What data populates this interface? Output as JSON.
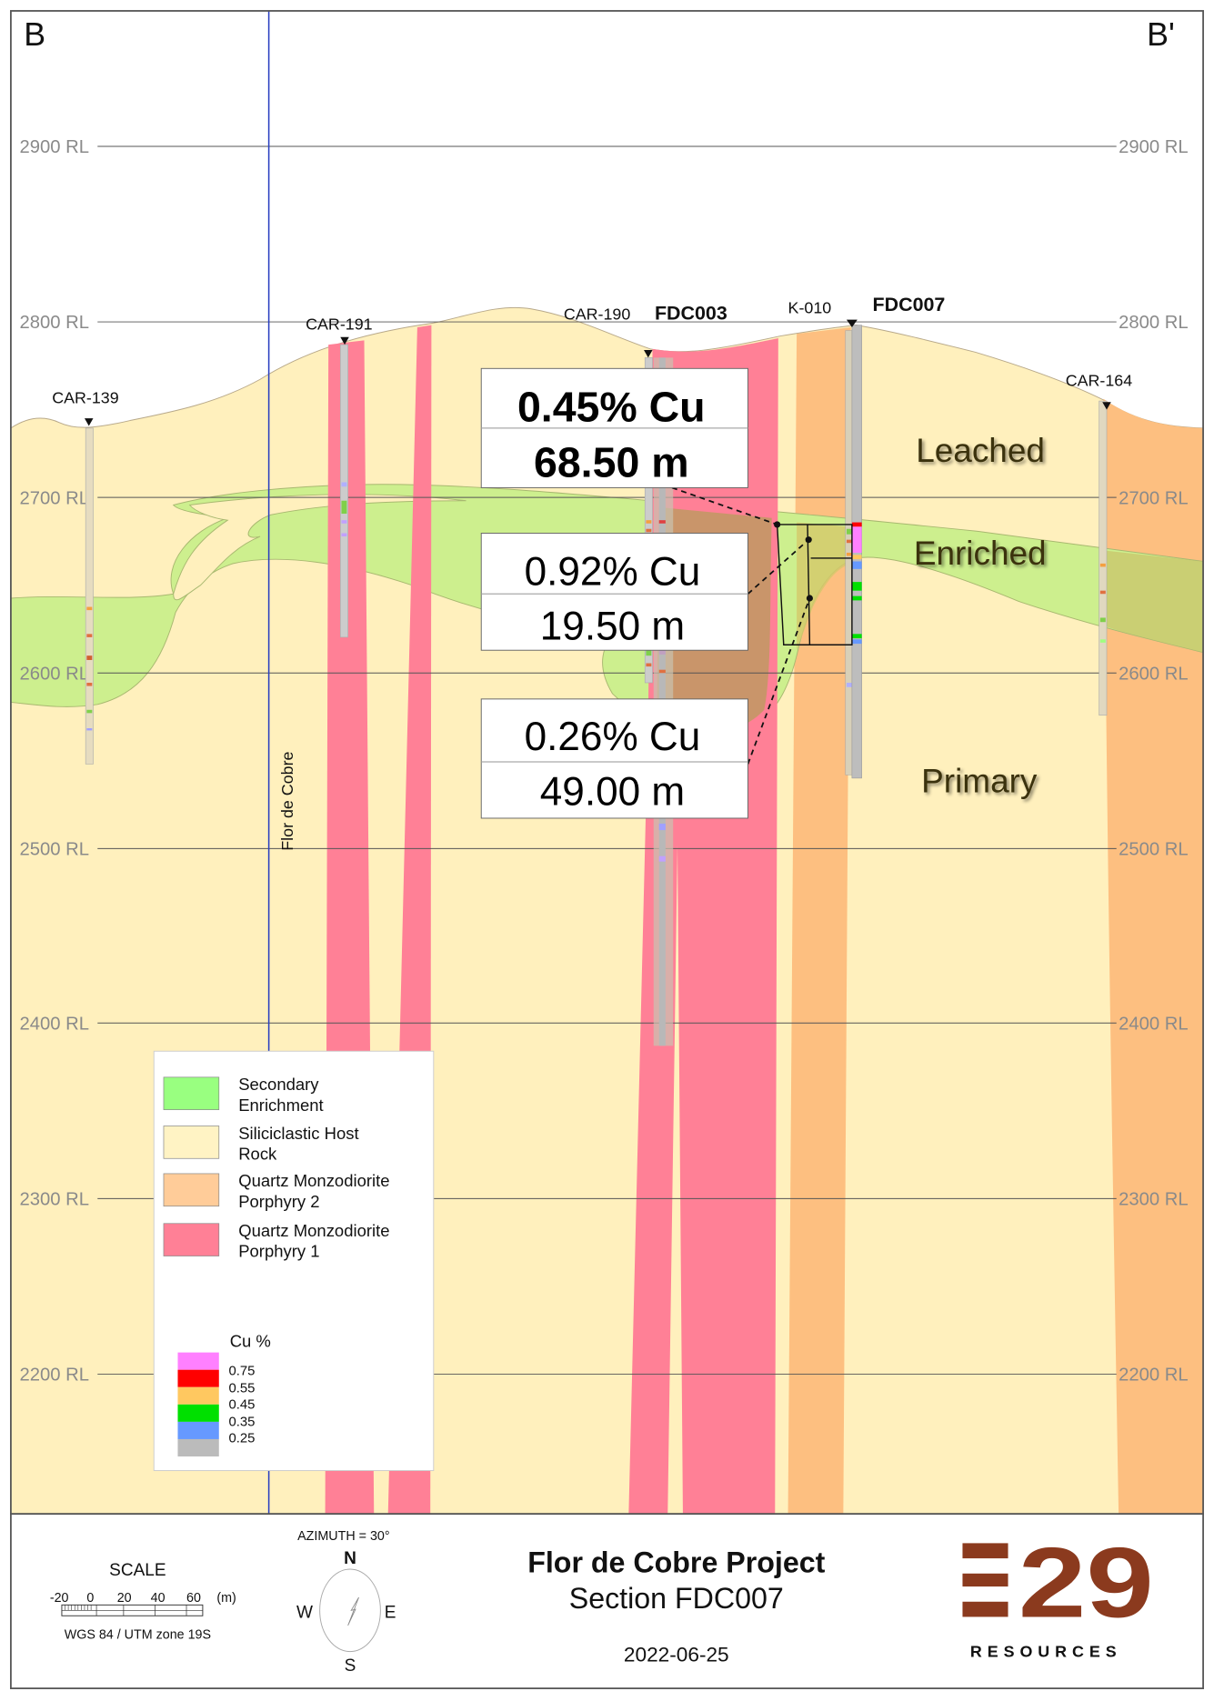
{
  "section": {
    "left_label": "B",
    "right_label": "B'"
  },
  "rl_levels": [
    "2900 RL",
    "2800 RL",
    "2700 RL",
    "2600 RL",
    "2500 RL",
    "2400 RL",
    "2300 RL",
    "2200 RL"
  ],
  "drillholes": {
    "car139": "CAR-139",
    "car191": "CAR-191",
    "car190": "CAR-190",
    "fdc003": "FDC003",
    "k010": "K-010",
    "fdc007": "FDC007",
    "car164": "CAR-164"
  },
  "fault_label": "Flor de Cobre",
  "zones": {
    "leached": "Leached",
    "enriched": "Enriched",
    "primary": "Primary"
  },
  "intercepts": [
    {
      "grade": "0.45% Cu",
      "length": "68.50 m"
    },
    {
      "grade": "0.92% Cu",
      "length": "19.50 m"
    },
    {
      "grade": "0.26% Cu",
      "length": "49.00 m"
    }
  ],
  "legend": {
    "units": [
      {
        "line1": "Secondary",
        "line2": "Enrichment",
        "color": "#99ff80"
      },
      {
        "line1": "Siliciclastic Host",
        "line2": "Rock",
        "color": "#fff3c4"
      },
      {
        "line1": "Quartz Monzodiorite",
        "line2": "Porphyry 2",
        "color": "#ffcc99"
      },
      {
        "line1": "Quartz Monzodiorite",
        "line2": "Porphyry 1",
        "color": "#ff8096"
      }
    ],
    "cu_title": "Cu %",
    "cu_breaks": [
      "0.75",
      "0.55",
      "0.45",
      "0.35",
      "0.25"
    ],
    "cu_colors": [
      "#ff80ff",
      "#ff0000",
      "#ffc860",
      "#00e000",
      "#6699ff",
      "#bbbbbb"
    ]
  },
  "footer": {
    "scale_title": "SCALE",
    "scale_ticks": [
      "-20",
      "0",
      "20",
      "40",
      "60",
      "(m)"
    ],
    "projection": "WGS 84 / UTM zone 19S",
    "azimuth": "AZIMUTH = 30°",
    "compass": {
      "n": "N",
      "s": "S",
      "e": "E",
      "w": "W"
    },
    "title": "Flor de Cobre Project",
    "subtitle": "Section FDC007",
    "date": "2022-06-25",
    "logo_text": "E29",
    "logo_sub": "RESOURCES",
    "logo_color": "#8b3a1e"
  }
}
